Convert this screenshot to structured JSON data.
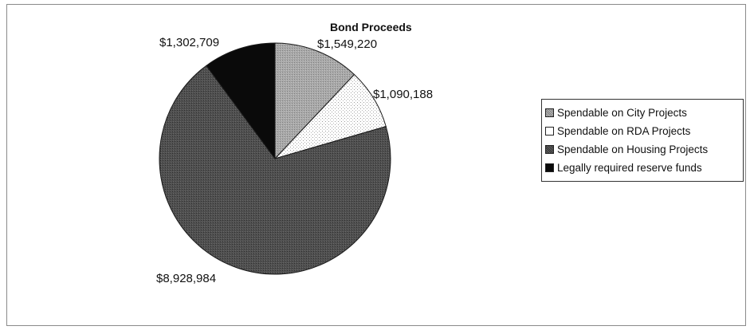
{
  "chart_data": {
    "type": "pie",
    "title": "Bond Proceeds",
    "categories": [
      "Spendable on City Projects",
      "Spendable on RDA Projects",
      "Spendable on Housing Projects",
      "Legally required reserve funds"
    ],
    "values": [
      1549220,
      1090188,
      8928984,
      1302709
    ],
    "data_labels": [
      "$1,549,220",
      "$1,090,188",
      "$8,928,984",
      "$1,302,709"
    ],
    "slice_colors": [
      "#9a9a9a",
      "#ececec",
      "#4d4d4d",
      "#0a0a0a"
    ],
    "legend_placement": "right"
  }
}
